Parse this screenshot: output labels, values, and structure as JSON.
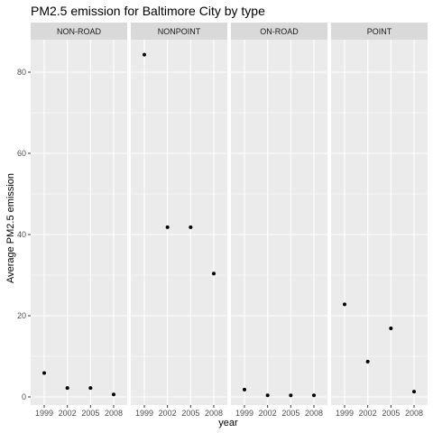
{
  "chart_data": {
    "type": "scatter",
    "title": "PM2.5 emission for Baltimore City by type",
    "xlabel": "year",
    "ylabel": "Average PM2.5 emission",
    "x_ticks": [
      "1999",
      "2002",
      "2005",
      "2008"
    ],
    "y_ticks": [
      "0",
      "20",
      "40",
      "60",
      "80"
    ],
    "ylim": [
      -2,
      88
    ],
    "grid": true,
    "colors": {
      "panel_bg": "#ebebeb",
      "strip_bg": "#d9d9d9",
      "grid_major": "#ffffff",
      "point": "#000000"
    },
    "facets": [
      {
        "name": "NON-ROAD",
        "x": [
          1999,
          2002,
          2005,
          2008
        ],
        "y": [
          5.9,
          2.2,
          2.2,
          0.6
        ]
      },
      {
        "name": "NONPOINT",
        "x": [
          1999,
          2002,
          2005,
          2008
        ],
        "y": [
          84.3,
          41.8,
          41.8,
          30.4
        ]
      },
      {
        "name": "ON-ROAD",
        "x": [
          1999,
          2002,
          2005,
          2008
        ],
        "y": [
          1.8,
          0.4,
          0.4,
          0.4
        ]
      },
      {
        "name": "POINT",
        "x": [
          1999,
          2002,
          2005,
          2008
        ],
        "y": [
          22.8,
          8.7,
          16.9,
          1.3
        ]
      }
    ]
  }
}
